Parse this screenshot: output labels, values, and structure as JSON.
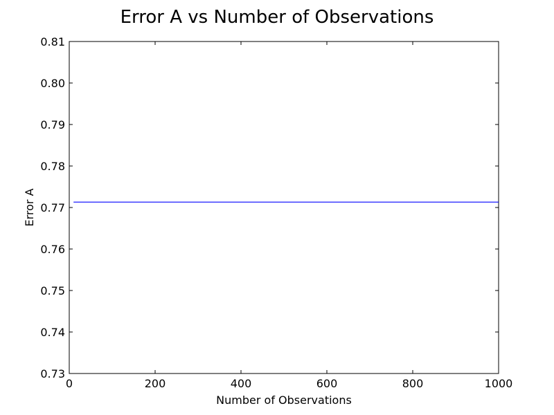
{
  "chart_data": {
    "type": "line",
    "title": "Error A vs Number of Observations",
    "xlabel": "Number of Observations",
    "ylabel": "Error A",
    "xlim": [
      0,
      1000
    ],
    "ylim": [
      0.73,
      0.81
    ],
    "xticks": [
      0,
      200,
      400,
      600,
      800,
      1000
    ],
    "xtick_labels": [
      "0",
      "200",
      "400",
      "600",
      "800",
      "1000"
    ],
    "yticks": [
      0.73,
      0.74,
      0.75,
      0.76,
      0.77,
      0.78,
      0.79,
      0.8,
      0.81
    ],
    "ytick_labels": [
      "0.73",
      "0.74",
      "0.75",
      "0.76",
      "0.77",
      "0.78",
      "0.79",
      "0.80",
      "0.81"
    ],
    "grid": false,
    "legend": "none",
    "series": [
      {
        "color": "#0000ff",
        "x": [
          10,
          1000
        ],
        "y": [
          0.7713,
          0.7713
        ]
      }
    ]
  }
}
